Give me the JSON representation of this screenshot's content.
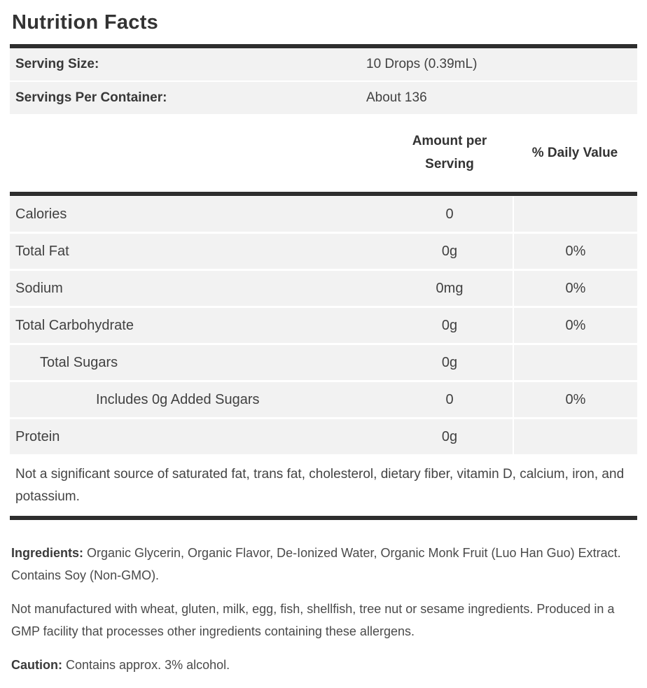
{
  "label": {
    "title": "Nutrition Facts",
    "serving_rows": [
      {
        "label": "Serving Size:",
        "value": "10 Drops (0.39mL)"
      },
      {
        "label": "Servings Per Container:",
        "value": "About 136"
      }
    ],
    "table": {
      "amount_header": "Amount per Serving",
      "daily_value_header": "% Daily Value",
      "rows": [
        {
          "name": "Calories",
          "amount": "0",
          "dv": "",
          "indent": 0
        },
        {
          "name": "Total Fat",
          "amount": "0g",
          "dv": "0%",
          "indent": 0
        },
        {
          "name": "Sodium",
          "amount": "0mg",
          "dv": "0%",
          "indent": 0
        },
        {
          "name": "Total Carbohydrate",
          "amount": "0g",
          "dv": "0%",
          "indent": 0
        },
        {
          "name": "Total Sugars",
          "amount": "0g",
          "dv": "",
          "indent": 1
        },
        {
          "name": "Includes 0g Added Sugars",
          "amount": "0",
          "dv": "0%",
          "indent": 2
        },
        {
          "name": "Protein",
          "amount": "0g",
          "dv": "",
          "indent": 0
        }
      ]
    },
    "footnote": "Not a significant source of saturated fat, trans fat, cholesterol, dietary fiber, vitamin D, calcium, iron, and potassium.",
    "paragraphs": {
      "ingredients_label": "Ingredients:",
      "ingredients_text": " Organic Glycerin, Organic Flavor, De-Ionized Water, Organic Monk Fruit (Luo Han Guo) Extract. Contains Soy (Non-GMO).",
      "allergen_text": "Not manufactured with wheat, gluten, milk, egg, fish, shellfish, tree nut or sesame ingredients. Produced in a GMP facility that processes other ingredients containing these allergens.",
      "caution_label": "Caution:",
      "caution_text": " Contains approx. 3% alcohol."
    },
    "colors": {
      "rule": "#2e2e2e",
      "row_background": "#f2f2f2",
      "title_text": "#333333",
      "body_text": "#414141"
    }
  }
}
